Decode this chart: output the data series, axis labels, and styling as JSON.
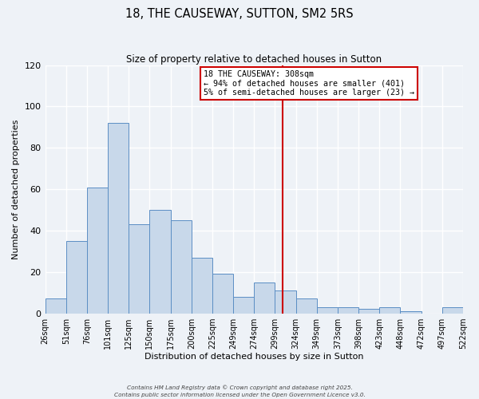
{
  "title": "18, THE CAUSEWAY, SUTTON, SM2 5RS",
  "subtitle": "Size of property relative to detached houses in Sutton",
  "xlabel": "Distribution of detached houses by size in Sutton",
  "ylabel": "Number of detached properties",
  "bar_values": [
    7,
    35,
    61,
    92,
    43,
    50,
    45,
    27,
    19,
    8,
    15,
    11,
    7,
    3,
    3,
    2,
    3,
    1,
    0,
    3
  ],
  "bin_labels": [
    "26sqm",
    "51sqm",
    "76sqm",
    "101sqm",
    "125sqm",
    "150sqm",
    "175sqm",
    "200sqm",
    "225sqm",
    "249sqm",
    "274sqm",
    "299sqm",
    "324sqm",
    "349sqm",
    "373sqm",
    "398sqm",
    "423sqm",
    "448sqm",
    "472sqm",
    "497sqm",
    "522sqm"
  ],
  "bar_color_face": "#c8d8ea",
  "bar_color_edge": "#5b8ec4",
  "ylim": [
    0,
    120
  ],
  "yticks": [
    0,
    20,
    40,
    60,
    80,
    100,
    120
  ],
  "vline_color": "#cc0000",
  "annotation_title": "18 THE CAUSEWAY: 308sqm",
  "annotation_line1": "← 94% of detached houses are smaller (401)",
  "annotation_line2": "5% of semi-detached houses are larger (23) →",
  "annotation_box_color": "#cc0000",
  "footer_line1": "Contains HM Land Registry data © Crown copyright and database right 2025.",
  "footer_line2": "Contains public sector information licensed under the Open Government Licence v3.0.",
  "background_color": "#eef2f7",
  "grid_color": "#ffffff"
}
